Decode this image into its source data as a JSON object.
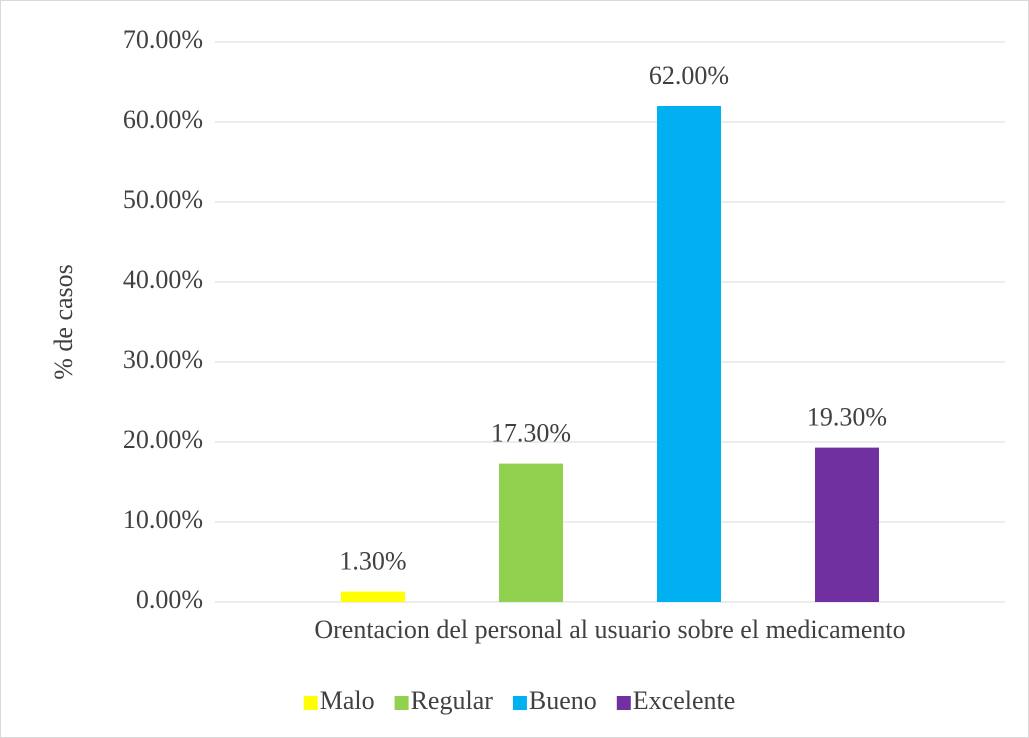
{
  "chart_data": {
    "type": "bar",
    "categories": [
      "Orentacion del personal al usuario sobre el medicamento"
    ],
    "ylabel": "% de casos",
    "ylim": [
      0,
      70
    ],
    "yticks": [
      {
        "value": 0,
        "label": "0.00%"
      },
      {
        "value": 10,
        "label": "10.00%"
      },
      {
        "value": 20,
        "label": "20.00%"
      },
      {
        "value": 30,
        "label": "30.00%"
      },
      {
        "value": 40,
        "label": "40.00%"
      },
      {
        "value": 50,
        "label": "50.00%"
      },
      {
        "value": 60,
        "label": "60.00%"
      },
      {
        "value": 70,
        "label": "70.00%"
      }
    ],
    "grid": true,
    "legend": "bottom",
    "series": [
      {
        "name": "Malo",
        "color": "#ffff00",
        "values": [
          1.3
        ],
        "value_labels": [
          "1.30%"
        ]
      },
      {
        "name": "Regular",
        "color": "#92d050",
        "values": [
          17.3
        ],
        "value_labels": [
          "17.30%"
        ]
      },
      {
        "name": "Bueno",
        "color": "#00b0f0",
        "values": [
          62
        ],
        "value_labels": [
          "62.00%"
        ]
      },
      {
        "name": "Excelente",
        "color": "#7030a0",
        "values": [
          19.3
        ],
        "value_labels": [
          "19.30%"
        ]
      }
    ]
  }
}
